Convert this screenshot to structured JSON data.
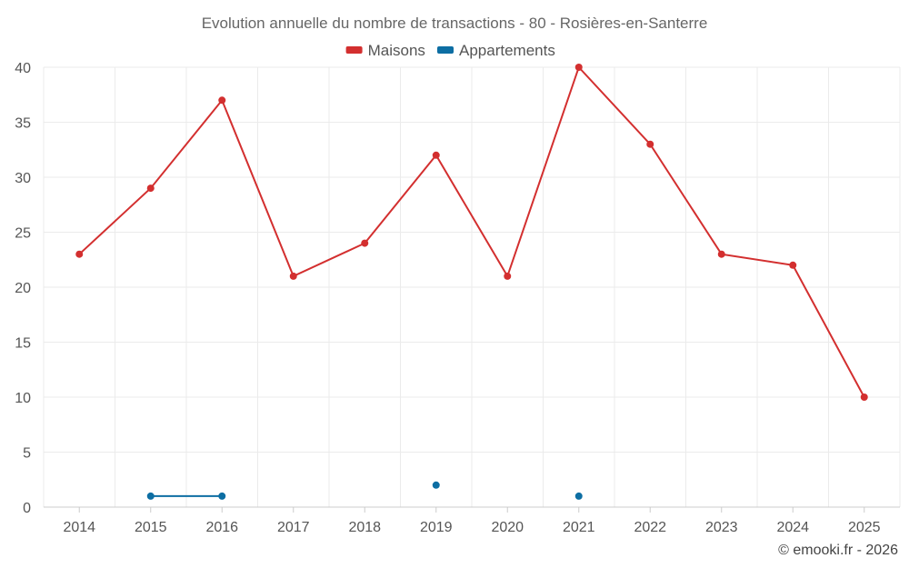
{
  "chart_data": {
    "type": "line",
    "title": "Evolution annuelle du nombre de transactions - 80 - Rosières-en-Santerre",
    "categories": [
      "2014",
      "2015",
      "2016",
      "2017",
      "2018",
      "2019",
      "2020",
      "2021",
      "2022",
      "2023",
      "2024",
      "2025"
    ],
    "series": [
      {
        "name": "Maisons",
        "color": "#d32f2f",
        "values": [
          23,
          29,
          37,
          21,
          24,
          32,
          21,
          40,
          33,
          23,
          22,
          10
        ]
      },
      {
        "name": "Appartements",
        "color": "#0d6ea3",
        "values": [
          null,
          1,
          1,
          null,
          null,
          2,
          null,
          1,
          null,
          null,
          null,
          null
        ]
      }
    ],
    "yticks": [
      0,
      5,
      10,
      15,
      20,
      25,
      30,
      35,
      40
    ],
    "ylim": [
      0,
      40
    ],
    "grid": true,
    "legend": "top-center",
    "credit": "© emooki.fr - 2026"
  }
}
